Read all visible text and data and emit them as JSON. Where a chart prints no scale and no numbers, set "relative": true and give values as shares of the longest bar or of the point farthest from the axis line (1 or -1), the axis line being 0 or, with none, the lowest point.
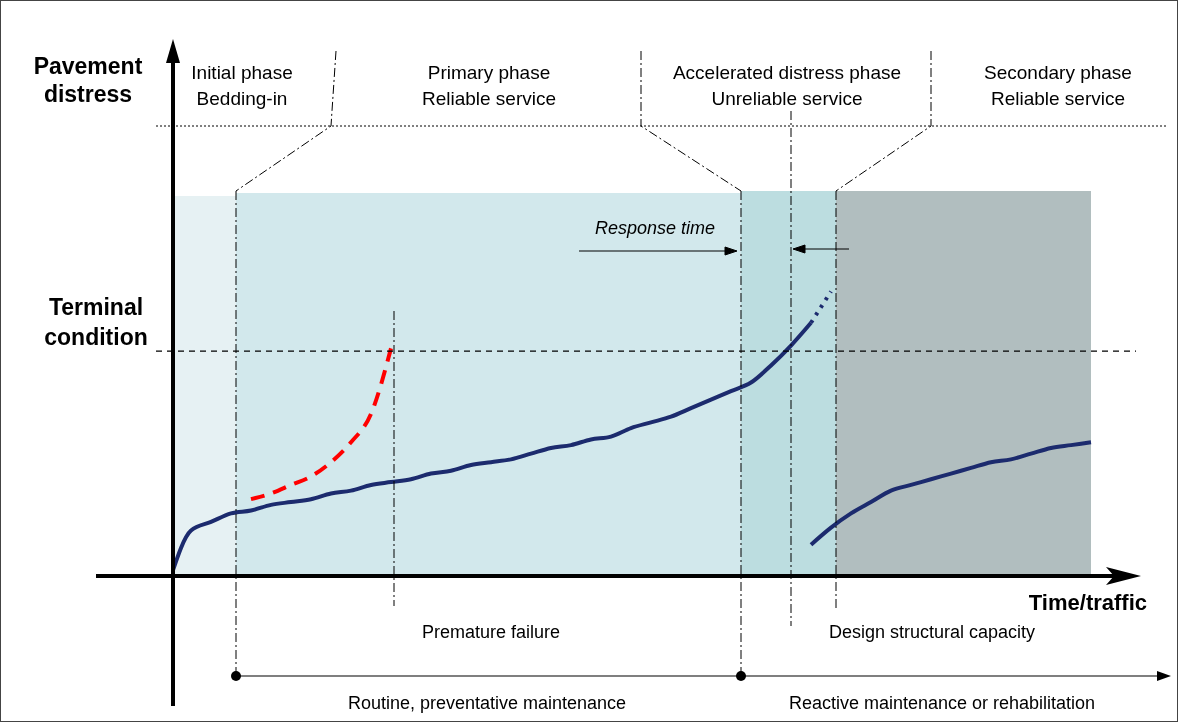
{
  "chart_data": {
    "type": "line",
    "relative": true,
    "xlabel": "Time/traffic",
    "categories": [
      null,
      null,
      null,
      null,
      null,
      null,
      null,
      null,
      null,
      null,
      null,
      null,
      null,
      null,
      null,
      null,
      null,
      null,
      null,
      null,
      null,
      null,
      null,
      null,
      null,
      null,
      null,
      null,
      null,
      null,
      null,
      null,
      null,
      null,
      null,
      null,
      null,
      null,
      null,
      null,
      null,
      null,
      null,
      null,
      null,
      null,
      null
    ],
    "series": [
      {
        "color": "#1c2b6e",
        "line_style": "solid",
        "values": [
          0,
          0.16,
          0.19,
          0.22,
          0.23,
          0.25,
          0.26,
          0.27,
          0.29,
          0.3,
          0.32,
          0.33,
          0.34,
          0.36,
          0.37,
          0.39,
          0.4,
          0.41,
          0.43,
          0.45,
          0.46,
          0.48,
          0.49,
          0.52,
          0.54,
          0.56,
          0.59,
          0.62,
          0.65,
          0.68,
          0.74,
          0.81,
          0.89,
          null,
          null,
          null,
          null,
          null,
          null,
          null,
          null,
          null,
          null,
          null,
          null,
          null,
          null
        ]
      },
      {
        "color": "#1c2b6e",
        "line_style": "dotted",
        "values": [
          null,
          null,
          null,
          null,
          null,
          null,
          null,
          null,
          null,
          null,
          null,
          null,
          null,
          null,
          null,
          null,
          null,
          null,
          null,
          null,
          null,
          null,
          null,
          null,
          null,
          null,
          null,
          null,
          null,
          null,
          null,
          null,
          0.89,
          1,
          null,
          null,
          null,
          null,
          null,
          null,
          null,
          null,
          null,
          null,
          null,
          null,
          null
        ]
      },
      {
        "color": "#ff0000",
        "line_style": "dashed",
        "values": [
          null,
          null,
          null,
          null,
          0.27,
          0.29,
          0.32,
          0.35,
          0.4,
          0.47,
          0.57,
          0.8,
          null,
          null,
          null,
          null,
          null,
          null,
          null,
          null,
          null,
          null,
          null,
          null,
          null,
          null,
          null,
          null,
          null,
          null,
          null,
          null,
          null,
          null,
          null,
          null,
          null,
          null,
          null,
          null,
          null,
          null,
          null,
          null,
          null,
          null,
          null
        ]
      },
      {
        "color": "#1c2b6e",
        "line_style": "solid",
        "values": [
          null,
          null,
          null,
          null,
          null,
          null,
          null,
          null,
          null,
          null,
          null,
          null,
          null,
          null,
          null,
          null,
          null,
          null,
          null,
          null,
          null,
          null,
          null,
          null,
          null,
          null,
          null,
          null,
          null,
          null,
          null,
          null,
          0.11,
          0.17,
          0.22,
          0.26,
          0.3,
          0.32,
          0.34,
          0.36,
          0.38,
          0.4,
          0.41,
          0.43,
          0.45,
          0.46,
          0.47
        ]
      }
    ],
    "ref_lines": [
      {
        "axis": "y",
        "value": 0.79,
        "label": "Terminal\ncondition",
        "line_style": "dashed",
        "color": "#000000"
      }
    ],
    "annotations": [
      "Pavement\ndistress",
      "Initial phase\nBedding-in",
      "Primary phase\nReliable service",
      "Accelerated distress phase\nUnreliable service",
      "Secondary phase\nReliable service",
      "Response time",
      "Premature failure",
      "Design structural capacity",
      "Routine, preventative maintenance",
      "Reactive maintenance or rehabilitation"
    ]
  }
}
